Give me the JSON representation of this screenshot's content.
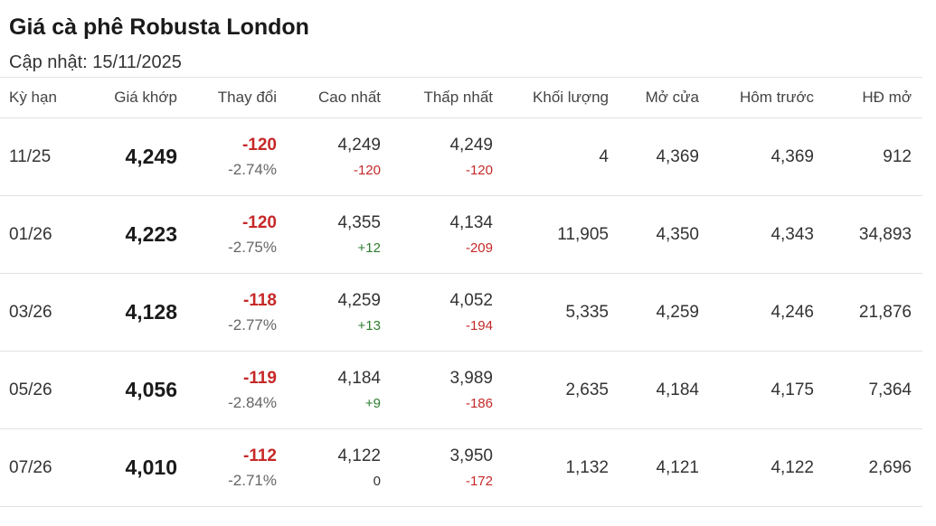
{
  "title": "Giá cà phê Robusta London",
  "updated": "Cập nhật: 15/11/2025",
  "headers": {
    "term": "Kỳ hạn",
    "price": "Giá khớp",
    "change": "Thay đổi",
    "high": "Cao nhất",
    "low": "Thấp nhất",
    "volume": "Khối lượng",
    "open": "Mở cửa",
    "prev": "Hôm trước",
    "oi": "HĐ mở"
  },
  "colors": {
    "negative": "#c62828",
    "positive": "#2e7d32"
  },
  "rows": [
    {
      "term": "11/25",
      "price": "4,249",
      "change": "-120",
      "change_pct": "-2.74%",
      "high": "4,249",
      "high_diff": "-120",
      "low": "4,249",
      "low_diff": "-120",
      "volume": "4",
      "open": "4,369",
      "prev": "4,369",
      "oi": "912"
    },
    {
      "term": "01/26",
      "price": "4,223",
      "change": "-120",
      "change_pct": "-2.75%",
      "high": "4,355",
      "high_diff": "+12",
      "low": "4,134",
      "low_diff": "-209",
      "volume": "11,905",
      "open": "4,350",
      "prev": "4,343",
      "oi": "34,893"
    },
    {
      "term": "03/26",
      "price": "4,128",
      "change": "-118",
      "change_pct": "-2.77%",
      "high": "4,259",
      "high_diff": "+13",
      "low": "4,052",
      "low_diff": "-194",
      "volume": "5,335",
      "open": "4,259",
      "prev": "4,246",
      "oi": "21,876"
    },
    {
      "term": "05/26",
      "price": "4,056",
      "change": "-119",
      "change_pct": "-2.84%",
      "high": "4,184",
      "high_diff": "+9",
      "low": "3,989",
      "low_diff": "-186",
      "volume": "2,635",
      "open": "4,184",
      "prev": "4,175",
      "oi": "7,364"
    },
    {
      "term": "07/26",
      "price": "4,010",
      "change": "-112",
      "change_pct": "-2.71%",
      "high": "4,122",
      "high_diff": "0",
      "low": "3,950",
      "low_diff": "-172",
      "volume": "1,132",
      "open": "4,121",
      "prev": "4,122",
      "oi": "2,696"
    }
  ]
}
